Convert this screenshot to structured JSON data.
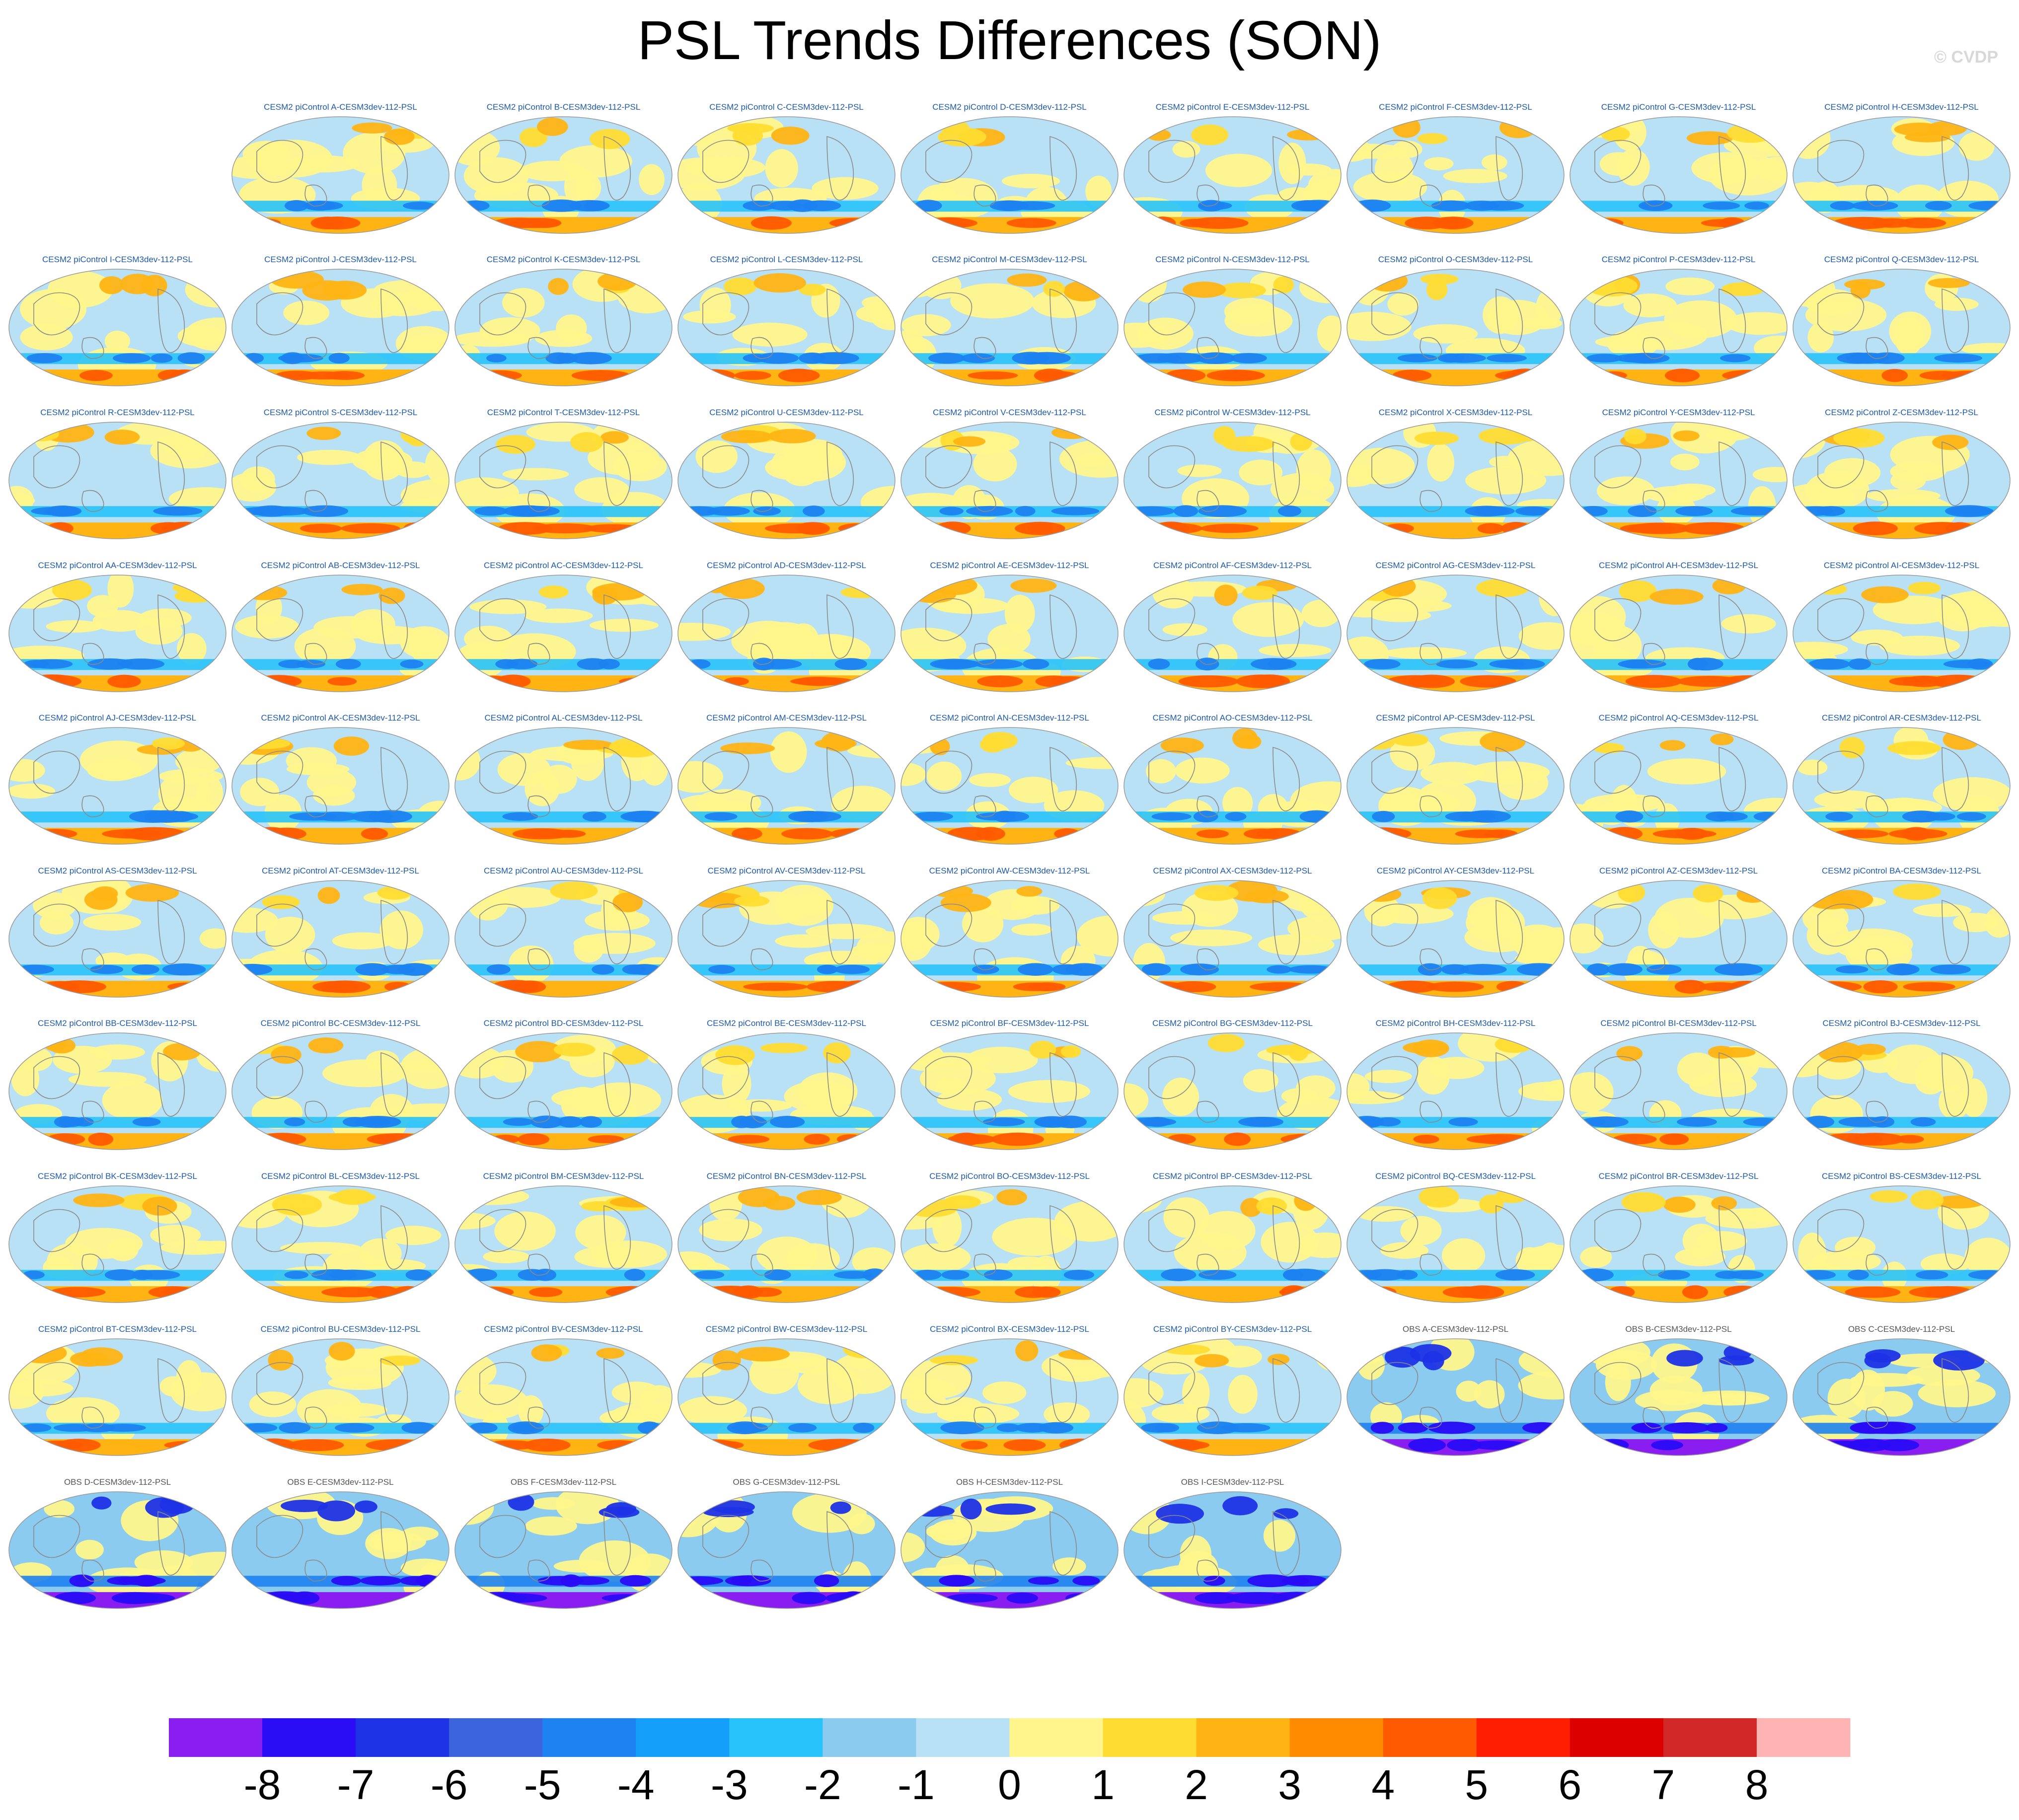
{
  "title": "PSL Trends Differences (SON)",
  "copyright": "© CVDP",
  "chart_data": {
    "type": "heatmap",
    "description_variable": "PSL",
    "season": "SON",
    "colors": {
      "model_title": "#1e5aa8",
      "obs_title": "#555555",
      "coast": "#8a8a8a",
      "frame": "#9a9a9a"
    },
    "colorbar": {
      "ticks": [
        "-8",
        "-7",
        "-6",
        "-5",
        "-4",
        "-3",
        "-2",
        "-1",
        "0",
        "1",
        "2",
        "3",
        "4",
        "5",
        "6",
        "7",
        "8"
      ],
      "colors": [
        "#8a1ef0",
        "#2a0cf5",
        "#1e32e6",
        "#3c64dc",
        "#1e82f0",
        "#14a0fa",
        "#28c3fa",
        "#8ccbf0",
        "#b9e1f5",
        "#fff58c",
        "#ffdc32",
        "#ffb414",
        "#ff8c00",
        "#ff5a00",
        "#ff1e00",
        "#dc0000",
        "#d22828",
        "#ffb4b4"
      ]
    },
    "panels": [
      {
        "title": "CESM2 piControl A-CESM3dev-112-PSL",
        "kind": "model"
      },
      {
        "title": "CESM2 piControl B-CESM3dev-112-PSL",
        "kind": "model"
      },
      {
        "title": "CESM2 piControl C-CESM3dev-112-PSL",
        "kind": "model"
      },
      {
        "title": "CESM2 piControl D-CESM3dev-112-PSL",
        "kind": "model"
      },
      {
        "title": "CESM2 piControl E-CESM3dev-112-PSL",
        "kind": "model"
      },
      {
        "title": "CESM2 piControl F-CESM3dev-112-PSL",
        "kind": "model"
      },
      {
        "title": "CESM2 piControl G-CESM3dev-112-PSL",
        "kind": "model"
      },
      {
        "title": "CESM2 piControl H-CESM3dev-112-PSL",
        "kind": "model"
      },
      {
        "title": "CESM2 piControl I-CESM3dev-112-PSL",
        "kind": "model"
      },
      {
        "title": "CESM2 piControl J-CESM3dev-112-PSL",
        "kind": "model"
      },
      {
        "title": "CESM2 piControl K-CESM3dev-112-PSL",
        "kind": "model"
      },
      {
        "title": "CESM2 piControl L-CESM3dev-112-PSL",
        "kind": "model"
      },
      {
        "title": "CESM2 piControl M-CESM3dev-112-PSL",
        "kind": "model"
      },
      {
        "title": "CESM2 piControl N-CESM3dev-112-PSL",
        "kind": "model"
      },
      {
        "title": "CESM2 piControl O-CESM3dev-112-PSL",
        "kind": "model"
      },
      {
        "title": "CESM2 piControl P-CESM3dev-112-PSL",
        "kind": "model"
      },
      {
        "title": "CESM2 piControl Q-CESM3dev-112-PSL",
        "kind": "model"
      },
      {
        "title": "CESM2 piControl R-CESM3dev-112-PSL",
        "kind": "model"
      },
      {
        "title": "CESM2 piControl S-CESM3dev-112-PSL",
        "kind": "model"
      },
      {
        "title": "CESM2 piControl T-CESM3dev-112-PSL",
        "kind": "model"
      },
      {
        "title": "CESM2 piControl U-CESM3dev-112-PSL",
        "kind": "model"
      },
      {
        "title": "CESM2 piControl V-CESM3dev-112-PSL",
        "kind": "model"
      },
      {
        "title": "CESM2 piControl W-CESM3dev-112-PSL",
        "kind": "model"
      },
      {
        "title": "CESM2 piControl X-CESM3dev-112-PSL",
        "kind": "model"
      },
      {
        "title": "CESM2 piControl Y-CESM3dev-112-PSL",
        "kind": "model"
      },
      {
        "title": "CESM2 piControl Z-CESM3dev-112-PSL",
        "kind": "model"
      },
      {
        "title": "CESM2 piControl AA-CESM3dev-112-PSL",
        "kind": "model"
      },
      {
        "title": "CESM2 piControl AB-CESM3dev-112-PSL",
        "kind": "model"
      },
      {
        "title": "CESM2 piControl AC-CESM3dev-112-PSL",
        "kind": "model"
      },
      {
        "title": "CESM2 piControl AD-CESM3dev-112-PSL",
        "kind": "model"
      },
      {
        "title": "CESM2 piControl AE-CESM3dev-112-PSL",
        "kind": "model"
      },
      {
        "title": "CESM2 piControl AF-CESM3dev-112-PSL",
        "kind": "model"
      },
      {
        "title": "CESM2 piControl AG-CESM3dev-112-PSL",
        "kind": "model"
      },
      {
        "title": "CESM2 piControl AH-CESM3dev-112-PSL",
        "kind": "model"
      },
      {
        "title": "CESM2 piControl AI-CESM3dev-112-PSL",
        "kind": "model"
      },
      {
        "title": "CESM2 piControl AJ-CESM3dev-112-PSL",
        "kind": "model"
      },
      {
        "title": "CESM2 piControl AK-CESM3dev-112-PSL",
        "kind": "model"
      },
      {
        "title": "CESM2 piControl AL-CESM3dev-112-PSL",
        "kind": "model"
      },
      {
        "title": "CESM2 piControl AM-CESM3dev-112-PSL",
        "kind": "model"
      },
      {
        "title": "CESM2 piControl AN-CESM3dev-112-PSL",
        "kind": "model"
      },
      {
        "title": "CESM2 piControl AO-CESM3dev-112-PSL",
        "kind": "model"
      },
      {
        "title": "CESM2 piControl AP-CESM3dev-112-PSL",
        "kind": "model"
      },
      {
        "title": "CESM2 piControl AQ-CESM3dev-112-PSL",
        "kind": "model"
      },
      {
        "title": "CESM2 piControl AR-CESM3dev-112-PSL",
        "kind": "model"
      },
      {
        "title": "CESM2 piControl AS-CESM3dev-112-PSL",
        "kind": "model"
      },
      {
        "title": "CESM2 piControl AT-CESM3dev-112-PSL",
        "kind": "model"
      },
      {
        "title": "CESM2 piControl AU-CESM3dev-112-PSL",
        "kind": "model"
      },
      {
        "title": "CESM2 piControl AV-CESM3dev-112-PSL",
        "kind": "model"
      },
      {
        "title": "CESM2 piControl AW-CESM3dev-112-PSL",
        "kind": "model"
      },
      {
        "title": "CESM2 piControl AX-CESM3dev-112-PSL",
        "kind": "model"
      },
      {
        "title": "CESM2 piControl AY-CESM3dev-112-PSL",
        "kind": "model"
      },
      {
        "title": "CESM2 piControl AZ-CESM3dev-112-PSL",
        "kind": "model"
      },
      {
        "title": "CESM2 piControl BA-CESM3dev-112-PSL",
        "kind": "model"
      },
      {
        "title": "CESM2 piControl BB-CESM3dev-112-PSL",
        "kind": "model"
      },
      {
        "title": "CESM2 piControl BC-CESM3dev-112-PSL",
        "kind": "model"
      },
      {
        "title": "CESM2 piControl BD-CESM3dev-112-PSL",
        "kind": "model"
      },
      {
        "title": "CESM2 piControl BE-CESM3dev-112-PSL",
        "kind": "model"
      },
      {
        "title": "CESM2 piControl BF-CESM3dev-112-PSL",
        "kind": "model"
      },
      {
        "title": "CESM2 piControl BG-CESM3dev-112-PSL",
        "kind": "model"
      },
      {
        "title": "CESM2 piControl BH-CESM3dev-112-PSL",
        "kind": "model"
      },
      {
        "title": "CESM2 piControl BI-CESM3dev-112-PSL",
        "kind": "model"
      },
      {
        "title": "CESM2 piControl BJ-CESM3dev-112-PSL",
        "kind": "model"
      },
      {
        "title": "CESM2 piControl BK-CESM3dev-112-PSL",
        "kind": "model"
      },
      {
        "title": "CESM2 piControl BL-CESM3dev-112-PSL",
        "kind": "model"
      },
      {
        "title": "CESM2 piControl BM-CESM3dev-112-PSL",
        "kind": "model"
      },
      {
        "title": "CESM2 piControl BN-CESM3dev-112-PSL",
        "kind": "model"
      },
      {
        "title": "CESM2 piControl BO-CESM3dev-112-PSL",
        "kind": "model"
      },
      {
        "title": "CESM2 piControl BP-CESM3dev-112-PSL",
        "kind": "model"
      },
      {
        "title": "CESM2 piControl BQ-CESM3dev-112-PSL",
        "kind": "model"
      },
      {
        "title": "CESM2 piControl BR-CESM3dev-112-PSL",
        "kind": "model"
      },
      {
        "title": "CESM2 piControl BS-CESM3dev-112-PSL",
        "kind": "model"
      },
      {
        "title": "CESM2 piControl BT-CESM3dev-112-PSL",
        "kind": "model"
      },
      {
        "title": "CESM2 piControl BU-CESM3dev-112-PSL",
        "kind": "model"
      },
      {
        "title": "CESM2 piControl BV-CESM3dev-112-PSL",
        "kind": "model"
      },
      {
        "title": "CESM2 piControl BW-CESM3dev-112-PSL",
        "kind": "model"
      },
      {
        "title": "CESM2 piControl BX-CESM3dev-112-PSL",
        "kind": "model"
      },
      {
        "title": "CESM2 piControl BY-CESM3dev-112-PSL",
        "kind": "model"
      },
      {
        "title": "OBS A-CESM3dev-112-PSL",
        "kind": "obs"
      },
      {
        "title": "OBS B-CESM3dev-112-PSL",
        "kind": "obs"
      },
      {
        "title": "OBS C-CESM3dev-112-PSL",
        "kind": "obs"
      },
      {
        "title": "OBS D-CESM3dev-112-PSL",
        "kind": "obs"
      },
      {
        "title": "OBS E-CESM3dev-112-PSL",
        "kind": "obs"
      },
      {
        "title": "OBS F-CESM3dev-112-PSL",
        "kind": "obs"
      },
      {
        "title": "OBS G-CESM3dev-112-PSL",
        "kind": "obs"
      },
      {
        "title": "OBS H-CESM3dev-112-PSL",
        "kind": "obs"
      },
      {
        "title": "OBS I-CESM3dev-112-PSL",
        "kind": "obs"
      }
    ]
  }
}
